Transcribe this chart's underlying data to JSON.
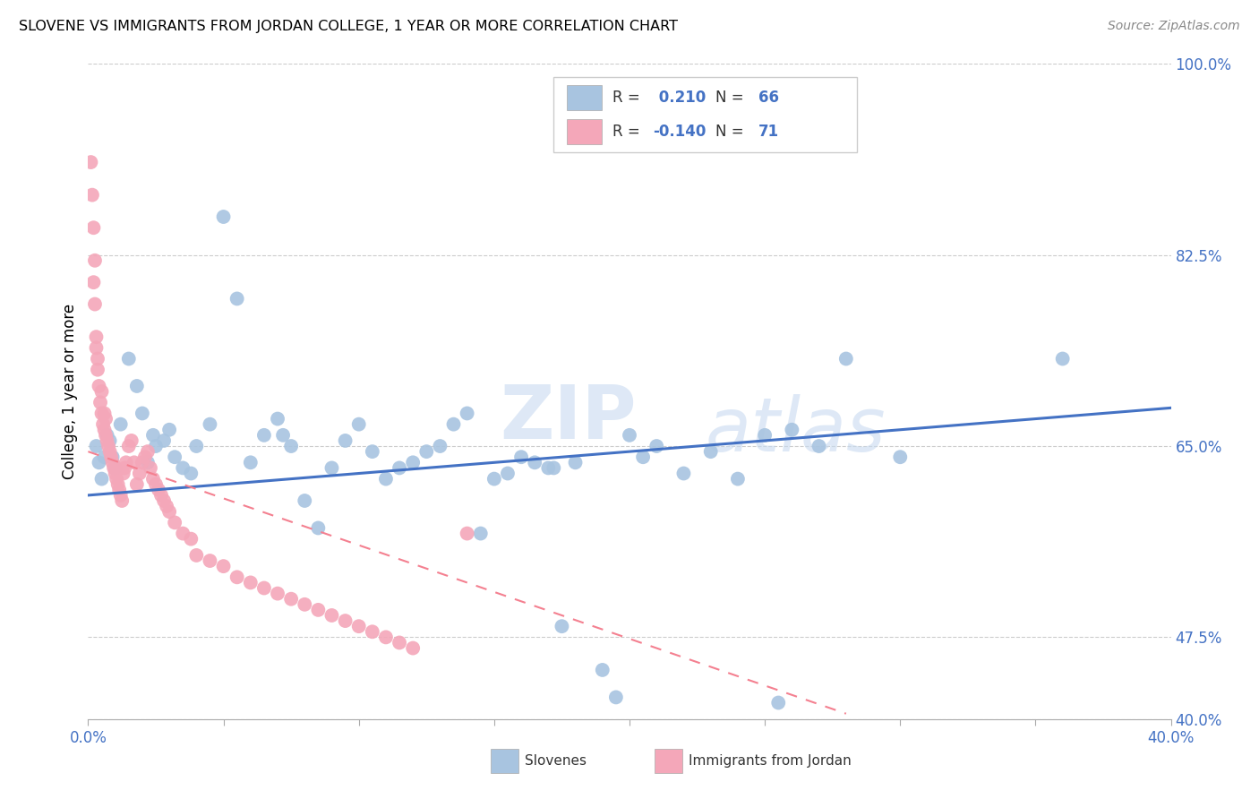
{
  "title": "SLOVENE VS IMMIGRANTS FROM JORDAN COLLEGE, 1 YEAR OR MORE CORRELATION CHART",
  "source": "Source: ZipAtlas.com",
  "ylabel": "College, 1 year or more",
  "xlim": [
    0.0,
    40.0
  ],
  "ylim": [
    40.0,
    100.0
  ],
  "ytick_vals": [
    40.0,
    47.5,
    65.0,
    82.5,
    100.0
  ],
  "ytick_labels": [
    "40.0%",
    "47.5%",
    "65.0%",
    "82.5%",
    "100.0%"
  ],
  "xtick_vals": [
    0.0,
    5.0,
    10.0,
    15.0,
    20.0,
    25.0,
    30.0,
    35.0,
    40.0
  ],
  "blue_R": 0.21,
  "blue_N": 66,
  "pink_R": -0.14,
  "pink_N": 71,
  "blue_color": "#a8c4e0",
  "pink_color": "#f4a7b9",
  "blue_line_color": "#4472c4",
  "pink_line_color": "#f48090",
  "legend_label_blue": "Slovenes",
  "legend_label_pink": "Immigrants from Jordan",
  "blue_line_x0": 0.0,
  "blue_line_x1": 40.0,
  "blue_line_y0": 60.5,
  "blue_line_y1": 68.5,
  "pink_line_x0": 0.0,
  "pink_line_x1": 28.0,
  "pink_line_y0": 64.5,
  "pink_line_y1": 40.5,
  "blue_x": [
    0.3,
    0.4,
    0.5,
    0.6,
    0.7,
    0.8,
    0.9,
    1.0,
    1.2,
    1.5,
    1.8,
    2.0,
    2.2,
    2.4,
    2.5,
    2.8,
    3.0,
    3.2,
    3.5,
    3.8,
    4.0,
    4.5,
    5.0,
    5.5,
    6.0,
    6.5,
    7.0,
    7.5,
    8.0,
    8.5,
    9.0,
    9.5,
    10.0,
    10.5,
    11.0,
    11.5,
    12.0,
    12.5,
    13.0,
    13.5,
    14.0,
    15.0,
    15.5,
    16.0,
    16.5,
    17.0,
    17.5,
    18.0,
    19.0,
    20.0,
    21.0,
    22.0,
    23.0,
    24.0,
    25.0,
    26.0,
    27.0,
    28.0,
    30.0,
    14.5,
    20.5,
    19.5,
    36.0,
    25.5,
    7.2,
    17.2
  ],
  "blue_y": [
    65.0,
    63.5,
    62.0,
    64.0,
    66.0,
    65.5,
    64.0,
    63.0,
    67.0,
    73.0,
    70.5,
    68.0,
    63.5,
    66.0,
    65.0,
    65.5,
    66.5,
    64.0,
    63.0,
    62.5,
    65.0,
    67.0,
    86.0,
    78.5,
    63.5,
    66.0,
    67.5,
    65.0,
    60.0,
    57.5,
    63.0,
    65.5,
    67.0,
    64.5,
    62.0,
    63.0,
    63.5,
    64.5,
    65.0,
    67.0,
    68.0,
    62.0,
    62.5,
    64.0,
    63.5,
    63.0,
    48.5,
    63.5,
    44.5,
    66.0,
    65.0,
    62.5,
    64.5,
    62.0,
    66.0,
    66.5,
    65.0,
    73.0,
    64.0,
    57.0,
    64.0,
    42.0,
    73.0,
    41.5,
    66.0,
    63.0
  ],
  "pink_x": [
    0.1,
    0.15,
    0.2,
    0.25,
    0.3,
    0.35,
    0.4,
    0.45,
    0.5,
    0.55,
    0.6,
    0.65,
    0.7,
    0.75,
    0.8,
    0.85,
    0.9,
    0.95,
    1.0,
    1.05,
    1.1,
    1.15,
    1.2,
    1.25,
    1.3,
    1.35,
    1.4,
    1.5,
    1.6,
    1.7,
    1.8,
    1.9,
    2.0,
    2.1,
    2.2,
    2.3,
    2.4,
    2.5,
    2.6,
    2.7,
    2.8,
    2.9,
    3.0,
    3.2,
    3.5,
    3.8,
    4.0,
    4.5,
    5.0,
    5.5,
    6.0,
    6.5,
    7.0,
    7.5,
    8.0,
    8.5,
    9.0,
    9.5,
    10.0,
    10.5,
    11.0,
    11.5,
    12.0,
    14.0,
    0.2,
    0.25,
    0.3,
    0.35,
    0.5,
    0.6,
    0.65
  ],
  "pink_y": [
    91.0,
    88.0,
    80.0,
    78.0,
    74.0,
    72.0,
    70.5,
    69.0,
    68.0,
    67.0,
    66.5,
    66.0,
    65.5,
    65.0,
    64.5,
    64.0,
    63.5,
    63.0,
    62.5,
    62.0,
    61.5,
    61.0,
    60.5,
    60.0,
    62.5,
    63.0,
    63.5,
    65.0,
    65.5,
    63.5,
    61.5,
    62.5,
    63.5,
    64.0,
    64.5,
    63.0,
    62.0,
    61.5,
    61.0,
    60.5,
    60.0,
    59.5,
    59.0,
    58.0,
    57.0,
    56.5,
    55.0,
    54.5,
    54.0,
    53.0,
    52.5,
    52.0,
    51.5,
    51.0,
    50.5,
    50.0,
    49.5,
    49.0,
    48.5,
    48.0,
    47.5,
    47.0,
    46.5,
    57.0,
    85.0,
    82.0,
    75.0,
    73.0,
    70.0,
    68.0,
    67.5
  ]
}
